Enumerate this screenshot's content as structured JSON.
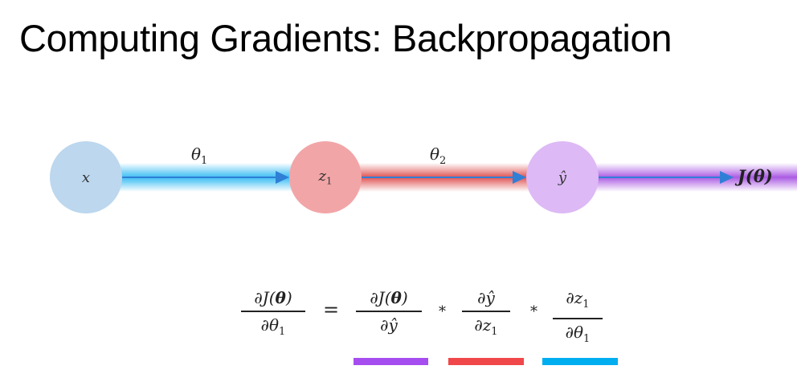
{
  "slide": {
    "title": "Computing Gradients: Backpropagation"
  },
  "graph": {
    "nodes": [
      {
        "id": "x",
        "label": "x",
        "color": "#bcd7ee"
      },
      {
        "id": "z1",
        "label": "z",
        "sub": "1",
        "color": "#f2a5a7"
      },
      {
        "id": "yhat",
        "label": "ŷ",
        "color": "#ddb9f5"
      }
    ],
    "edges": [
      {
        "label": "θ",
        "sub": "1",
        "band_color": "#00aaf0"
      },
      {
        "label": "θ",
        "sub": "2",
        "band_color": "#d72828"
      },
      {
        "label": "",
        "band_color": "#9632dc"
      }
    ],
    "output": {
      "label": "J(θ)"
    }
  },
  "equation": {
    "lhs": {
      "num_a": "∂J(",
      "num_theta": "θ",
      "num_b": ")",
      "den_a": "∂θ",
      "den_sub": "1"
    },
    "equals": "=",
    "term1": {
      "num_a": "∂J(",
      "num_theta": "θ",
      "num_b": ")",
      "den": "∂ŷ"
    },
    "times": "*",
    "term2": {
      "num": "∂ŷ",
      "den_a": "∂z",
      "den_sub": "1"
    },
    "term3": {
      "num_a": "∂z",
      "num_sub": "1",
      "den_a": "∂θ",
      "den_sub": "1"
    }
  },
  "underline_colors": [
    "#a64df0",
    "#f0484a",
    "#00aef0"
  ]
}
